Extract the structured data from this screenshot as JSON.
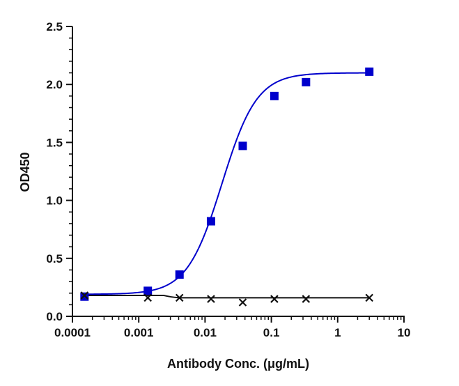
{
  "chart_data": {
    "type": "scatter",
    "xscale": "log",
    "xlim": [
      0.0001,
      10
    ],
    "ylim": [
      0,
      2.5
    ],
    "xlabel": "Antibody Conc. (μg/mL)",
    "ylabel": "OD450",
    "x_ticks": [
      {
        "value": 0.0001,
        "label": "0.0001"
      },
      {
        "value": 0.001,
        "label": "0.001"
      },
      {
        "value": 0.01,
        "label": "0.01"
      },
      {
        "value": 0.1,
        "label": "0.1"
      },
      {
        "value": 1,
        "label": "1"
      },
      {
        "value": 10,
        "label": "10"
      }
    ],
    "y_ticks": [
      {
        "value": 0.0,
        "label": "0.0"
      },
      {
        "value": 0.5,
        "label": "0.5"
      },
      {
        "value": 1.0,
        "label": "1.0"
      },
      {
        "value": 1.5,
        "label": "1.5"
      },
      {
        "value": 2.0,
        "label": "2.0"
      },
      {
        "value": 2.5,
        "label": "2.5"
      }
    ],
    "grid": false,
    "series": [
      {
        "marker": "square",
        "color": "#0000cc",
        "fit": "4PL",
        "fit_params": {
          "bottom": 0.19,
          "top": 2.1,
          "ec50": 0.018,
          "hill": 1.65
        },
        "x": [
          0.000152,
          0.00137,
          0.00412,
          0.0123,
          0.037,
          0.111,
          0.333,
          3.0
        ],
        "y": [
          0.17,
          0.22,
          0.36,
          0.82,
          1.47,
          1.9,
          2.02,
          2.11
        ]
      },
      {
        "marker": "x",
        "color": "#111111",
        "fit": "line",
        "x": [
          0.000152,
          0.00137,
          0.00412,
          0.0123,
          0.037,
          0.111,
          0.333,
          3.0
        ],
        "y": [
          0.18,
          0.16,
          0.16,
          0.15,
          0.12,
          0.15,
          0.15,
          0.16
        ]
      }
    ]
  }
}
